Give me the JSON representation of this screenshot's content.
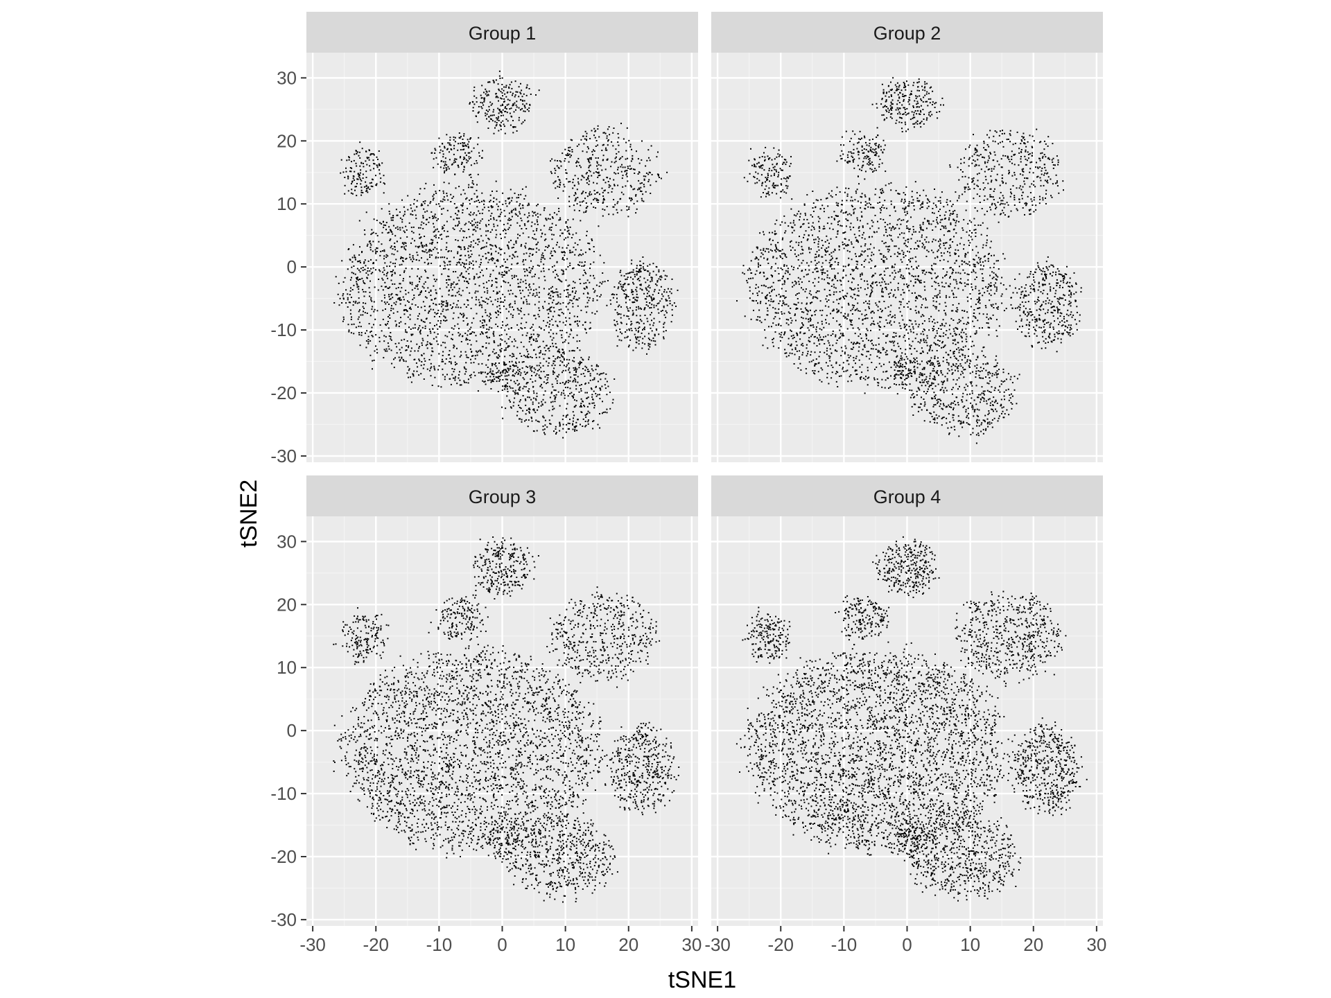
{
  "chart_data": {
    "type": "scatter",
    "xlabel": "tSNE1",
    "ylabel": "tSNE2",
    "xlim": [
      -31,
      31
    ],
    "ylim": [
      -31,
      34
    ],
    "x_ticks": [
      -30,
      -20,
      -10,
      0,
      10,
      20,
      30
    ],
    "x_tick_labels": [
      "-30",
      "-20",
      "-10",
      "0",
      "10",
      "20",
      "30"
    ],
    "y_ticks": [
      30,
      20,
      10,
      0,
      -10,
      -20,
      -30
    ],
    "y_tick_labels": [
      "30",
      "20",
      "10",
      "0",
      "-10",
      "-20",
      "-30"
    ],
    "grid": true,
    "point_color": "#000000",
    "panel_background": "#ebebeb",
    "strip_background": "#d9d9d9",
    "facets": [
      {
        "label": "Group 1",
        "density": 1.0
      },
      {
        "label": "Group 2",
        "density": 1.0
      },
      {
        "label": "Group 3",
        "density": 1.15
      },
      {
        "label": "Group 4",
        "density": 1.3
      }
    ],
    "clusters": [
      {
        "name": "main",
        "cx": -5,
        "cy": -3,
        "rx": 22,
        "ry": 17,
        "weight": 0.52
      },
      {
        "name": "top",
        "cx": 0,
        "cy": 26,
        "rx": 5,
        "ry": 4.5,
        "weight": 0.05
      },
      {
        "name": "upper-left",
        "cx": -22,
        "cy": 15,
        "rx": 3.5,
        "ry": 4,
        "weight": 0.03
      },
      {
        "name": "upper-mid-left",
        "cx": -7,
        "cy": 18,
        "rx": 4,
        "ry": 3.5,
        "weight": 0.03
      },
      {
        "name": "upper-right",
        "cx": 16,
        "cy": 15,
        "rx": 9,
        "ry": 7.5,
        "weight": 0.09
      },
      {
        "name": "right",
        "cx": 22,
        "cy": -6,
        "rx": 5.5,
        "ry": 7.5,
        "weight": 0.08
      },
      {
        "name": "lower-right",
        "cx": 9,
        "cy": -20,
        "rx": 9,
        "ry": 7,
        "weight": 0.1
      },
      {
        "name": "lower-center-small",
        "cx": 0,
        "cy": -17,
        "rx": 2.5,
        "ry": 3.5,
        "weight": 0.015
      }
    ]
  }
}
